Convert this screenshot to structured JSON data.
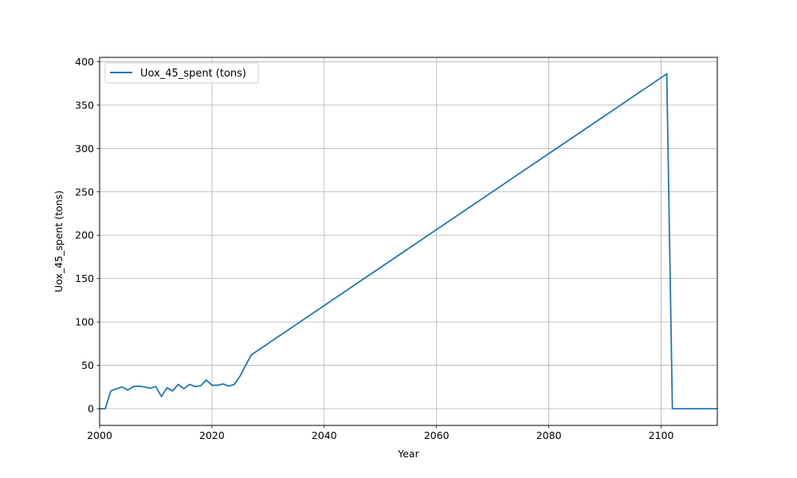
{
  "chart_data": {
    "type": "line",
    "xlabel": "Year",
    "ylabel": "Uox_45_spent (tons)",
    "xlim": [
      2000,
      2110
    ],
    "ylim": [
      -19.3,
      405
    ],
    "xticks": [
      2000,
      2020,
      2040,
      2060,
      2080,
      2100
    ],
    "yticks": [
      0,
      50,
      100,
      150,
      200,
      250,
      300,
      350,
      400
    ],
    "grid": true,
    "legend": {
      "placement": "upper-left"
    },
    "line_color": "#1f77b4",
    "series": [
      {
        "name": "Uox_45_spent (tons)",
        "x": [
          2000,
          2001,
          2002,
          2003,
          2004,
          2005,
          2006,
          2007,
          2008,
          2009,
          2010,
          2011,
          2012,
          2013,
          2014,
          2015,
          2016,
          2017,
          2018,
          2019,
          2020,
          2021,
          2022,
          2023,
          2024,
          2025,
          2026,
          2027,
          2101,
          2102,
          2103,
          2110
        ],
        "values": [
          0,
          0,
          20.5,
          23,
          25,
          21.5,
          25.5,
          26,
          25,
          23.5,
          25.5,
          14,
          24,
          20.5,
          28,
          23,
          28,
          25.5,
          26.5,
          33,
          27,
          27,
          28.5,
          26,
          28,
          37.5,
          50,
          62,
          386,
          0,
          0,
          0
        ]
      }
    ]
  }
}
